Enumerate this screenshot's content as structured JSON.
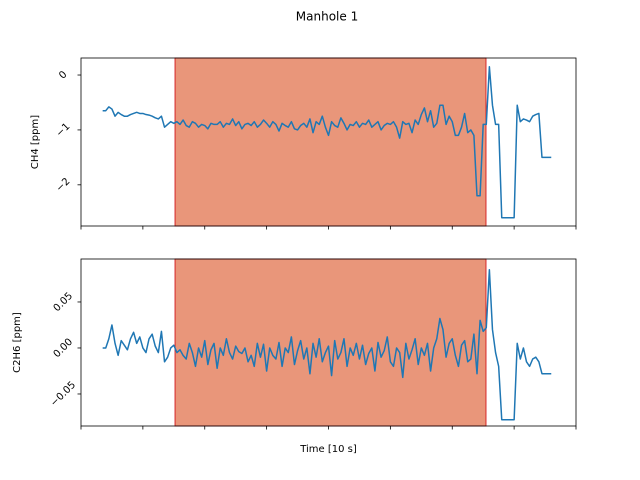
{
  "title": "Manhole 1",
  "chart_data": [
    {
      "type": "line",
      "ylabel": "CH4 [ppm]",
      "xlim": [
        0,
        160
      ],
      "xticks": [
        0,
        20,
        40,
        60,
        80,
        100,
        120,
        140,
        160
      ],
      "ylim": [
        -2.75,
        0.31
      ],
      "yticks": [
        {
          "value": -2,
          "label": "−2"
        },
        {
          "value": -1,
          "label": "−1"
        },
        0
      ],
      "span": [
        30.4,
        130.9
      ],
      "span_color": "#e9967a",
      "span_edge_color": "#d62728",
      "x": [
        7,
        8,
        9,
        10,
        11,
        12,
        13,
        14,
        15,
        16,
        17,
        18,
        19,
        20,
        21,
        22,
        23,
        24,
        25,
        26,
        27,
        28,
        29,
        30,
        31,
        32,
        33,
        34,
        35,
        36,
        37,
        38,
        39,
        40,
        41,
        42,
        43,
        44,
        45,
        46,
        47,
        48,
        49,
        50,
        51,
        52,
        53,
        54,
        55,
        56,
        57,
        58,
        59,
        60,
        61,
        62,
        63,
        64,
        65,
        66,
        67,
        68,
        69,
        70,
        71,
        72,
        73,
        74,
        75,
        76,
        77,
        78,
        79,
        80,
        81,
        82,
        83,
        84,
        85,
        86,
        87,
        88,
        89,
        90,
        91,
        92,
        93,
        94,
        95,
        96,
        97,
        98,
        99,
        100,
        101,
        102,
        103,
        104,
        105,
        106,
        107,
        108,
        109,
        110,
        111,
        112,
        113,
        114,
        115,
        116,
        117,
        118,
        119,
        120,
        121,
        122,
        123,
        124,
        125,
        126,
        127,
        128,
        129,
        130,
        131,
        132,
        133,
        134,
        135,
        136,
        137,
        138,
        139,
        140,
        141,
        142,
        143,
        144,
        145,
        146,
        147,
        148,
        149,
        150,
        151,
        152
      ],
      "series": [
        {
          "color": "#1f77b4",
          "values": [
            -0.65,
            -0.65,
            -0.58,
            -0.62,
            -0.75,
            -0.68,
            -0.72,
            -0.75,
            -0.75,
            -0.72,
            -0.7,
            -0.68,
            -0.7,
            -0.7,
            -0.72,
            -0.73,
            -0.75,
            -0.78,
            -0.8,
            -0.75,
            -0.95,
            -0.9,
            -0.85,
            -0.88,
            -0.85,
            -0.9,
            -0.82,
            -0.92,
            -0.95,
            -0.85,
            -0.88,
            -0.95,
            -0.9,
            -0.92,
            -0.98,
            -0.88,
            -0.9,
            -0.9,
            -0.85,
            -0.95,
            -0.88,
            -0.9,
            -0.8,
            -0.92,
            -0.85,
            -0.98,
            -0.9,
            -0.88,
            -0.92,
            -0.85,
            -0.95,
            -0.9,
            -0.82,
            -0.88,
            -0.95,
            -0.85,
            -0.9,
            -1.02,
            -0.88,
            -0.92,
            -0.95,
            -0.85,
            -0.98,
            -1.0,
            -0.92,
            -0.88,
            -0.95,
            -0.8,
            -1.05,
            -0.85,
            -0.9,
            -0.75,
            -0.95,
            -1.1,
            -0.85,
            -0.92,
            -0.95,
            -0.78,
            -0.88,
            -1.0,
            -0.9,
            -0.92,
            -0.85,
            -0.95,
            -0.88,
            -0.9,
            -0.82,
            -0.95,
            -0.9,
            -0.85,
            -1.0,
            -0.92,
            -0.88,
            -0.9,
            -0.85,
            -0.95,
            -1.15,
            -0.85,
            -0.9,
            -0.88,
            -1.05,
            -0.82,
            -0.9,
            -0.72,
            -0.6,
            -0.85,
            -0.65,
            -0.95,
            -0.88,
            -0.55,
            -0.55,
            -0.9,
            -0.75,
            -0.85,
            -1.1,
            -1.1,
            -0.95,
            -0.7,
            -1.05,
            -1.0,
            -1.1,
            -2.2,
            -2.2,
            -0.9,
            -0.9,
            0.15,
            -0.55,
            -0.9,
            -0.9,
            -2.6,
            -2.6,
            -2.6,
            -2.6,
            -2.6,
            -0.55,
            -0.85,
            -0.8,
            -0.82,
            -0.85,
            -0.75,
            -0.72,
            -0.7,
            -1.5,
            -1.5,
            -1.5,
            -1.5
          ]
        }
      ]
    },
    {
      "type": "line",
      "ylabel": "C2H6 [ppm]",
      "xlabel": "Time [10 s]",
      "xlim": [
        0,
        160
      ],
      "xticks": [
        0,
        20,
        40,
        60,
        80,
        100,
        120,
        140,
        160
      ],
      "ylim": [
        -0.0848,
        0.0967
      ],
      "yticks": [
        {
          "value": -0.05,
          "label": "−0.05"
        },
        {
          "value": 0,
          "label": "0.00"
        },
        0.05
      ],
      "span": [
        30.4,
        130.9
      ],
      "span_color": "#e9967a",
      "span_edge_color": "#d62728",
      "x": [
        7,
        8,
        9,
        10,
        11,
        12,
        13,
        14,
        15,
        16,
        17,
        18,
        19,
        20,
        21,
        22,
        23,
        24,
        25,
        26,
        27,
        28,
        29,
        30,
        31,
        32,
        33,
        34,
        35,
        36,
        37,
        38,
        39,
        40,
        41,
        42,
        43,
        44,
        45,
        46,
        47,
        48,
        49,
        50,
        51,
        52,
        53,
        54,
        55,
        56,
        57,
        58,
        59,
        60,
        61,
        62,
        63,
        64,
        65,
        66,
        67,
        68,
        69,
        70,
        71,
        72,
        73,
        74,
        75,
        76,
        77,
        78,
        79,
        80,
        81,
        82,
        83,
        84,
        85,
        86,
        87,
        88,
        89,
        90,
        91,
        92,
        93,
        94,
        95,
        96,
        97,
        98,
        99,
        100,
        101,
        102,
        103,
        104,
        105,
        106,
        107,
        108,
        109,
        110,
        111,
        112,
        113,
        114,
        115,
        116,
        117,
        118,
        119,
        120,
        121,
        122,
        123,
        124,
        125,
        126,
        127,
        128,
        129,
        130,
        131,
        132,
        133,
        134,
        135,
        136,
        137,
        138,
        139,
        140,
        141,
        142,
        143,
        144,
        145,
        146,
        147,
        148,
        149,
        150,
        151,
        152
      ],
      "series": [
        {
          "color": "#1f77b4",
          "values": [
            0,
            0,
            0.01,
            0.025,
            0.005,
            -0.008,
            0.008,
            0.003,
            -0.002,
            0.01,
            0.017,
            0.005,
            0.012,
            0.0,
            -0.005,
            0.01,
            0.015,
            0.002,
            -0.005,
            0.018,
            -0.015,
            -0.01,
            0.0,
            0.003,
            -0.005,
            -0.002,
            -0.008,
            -0.012,
            0.005,
            -0.005,
            -0.02,
            0.0,
            -0.01,
            0.008,
            -0.018,
            -0.002,
            0.005,
            -0.022,
            0.0,
            -0.008,
            0.01,
            -0.005,
            -0.012,
            0.002,
            -0.004,
            -0.006,
            0.0,
            -0.015,
            -0.008,
            -0.02,
            0.005,
            -0.01,
            0.004,
            -0.025,
            0.0,
            -0.008,
            -0.012,
            0.006,
            -0.02,
            0.0,
            -0.005,
            0.012,
            -0.018,
            -0.003,
            0.008,
            -0.012,
            0.0,
            -0.028,
            0.005,
            -0.01,
            0.01,
            -0.015,
            -0.005,
            0.002,
            -0.03,
            0.008,
            -0.012,
            -0.005,
            0.01,
            -0.02,
            0.0,
            -0.008,
            0.005,
            -0.012,
            0.003,
            -0.018,
            -0.006,
            0.0,
            -0.025,
            0.006,
            -0.01,
            -0.003,
            0.012,
            -0.015,
            -0.02,
            0.0,
            -0.005,
            -0.032,
            0.005,
            -0.012,
            -0.002,
            0.01,
            -0.018,
            0.0,
            -0.008,
            0.005,
            -0.025,
            0.0,
            0.01,
            0.032,
            0.02,
            -0.01,
            0.005,
            0.01,
            -0.008,
            -0.02,
            0.003,
            0.008,
            -0.015,
            -0.012,
            0.015,
            -0.028,
            0.03,
            0.018,
            0.022,
            0.085,
            0.02,
            -0.005,
            -0.02,
            -0.078,
            -0.078,
            -0.078,
            -0.078,
            -0.078,
            0.005,
            -0.012,
            0.0,
            -0.015,
            -0.02,
            -0.012,
            -0.01,
            -0.015,
            -0.028,
            -0.028,
            -0.028,
            -0.028
          ]
        }
      ]
    }
  ]
}
